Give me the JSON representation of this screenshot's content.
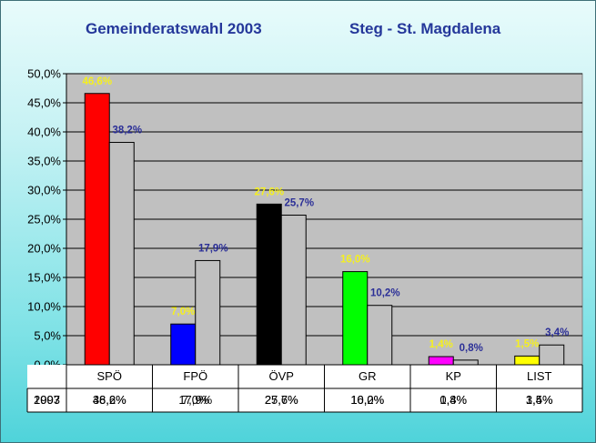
{
  "title_left": "Gemeinderatswahl 2003",
  "title_right": "Steg - St. Magdalena",
  "colors": {
    "series_2003_label": "#f5f01e",
    "series_1997_label": "#2b2f97",
    "plot_background": "#c0c0c0",
    "series_1997_bar": "#c0c0c0"
  },
  "chart_data": {
    "type": "bar",
    "categories": [
      "SPÖ",
      "FPÖ",
      "ÖVP",
      "GR",
      "KP",
      "LIST"
    ],
    "ylim": [
      0,
      50
    ],
    "ytick_step": 5,
    "y_tick_labels": [
      "0,0%",
      "5,0%",
      "10,0%",
      "15,0%",
      "20,0%",
      "25,0%",
      "30,0%",
      "35,0%",
      "40,0%",
      "45,0%",
      "50,0%"
    ],
    "grid": true,
    "series": [
      {
        "name": "2003",
        "values": [
          46.6,
          7.0,
          27.6,
          16.0,
          1.4,
          1.5
        ],
        "labels": [
          "46,6%",
          "7,0%",
          "27,6%",
          "16,0%",
          "1,4%",
          "1,5%"
        ],
        "colors": [
          "#ff0000",
          "#0000ff",
          "#000000",
          "#00ff00",
          "#ff00ff",
          "#ffff00"
        ]
      },
      {
        "name": "1997",
        "values": [
          38.2,
          17.9,
          25.7,
          10.2,
          0.8,
          3.4
        ],
        "labels": [
          "38,2%",
          "17,9%",
          "25,7%",
          "10,2%",
          "0,8%",
          "3,4%"
        ],
        "colors": [
          "#c0c0c0",
          "#c0c0c0",
          "#c0c0c0",
          "#c0c0c0",
          "#c0c0c0",
          "#c0c0c0"
        ]
      }
    ]
  }
}
